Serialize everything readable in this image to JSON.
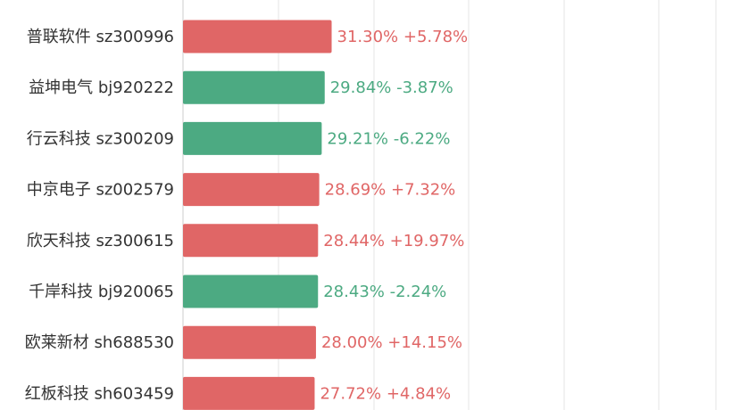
{
  "chart_data": {
    "type": "bar",
    "orientation": "horizontal",
    "grid": true,
    "colors": {
      "up": "#e06666",
      "down": "#4caa82",
      "grid": "#e6e6e6",
      "axis": "#cccccc",
      "label": "#333333"
    },
    "rows": [
      {
        "name": "普联软件",
        "code": "sz300996",
        "value": 31.3,
        "value_label": "31.30%",
        "change": "+5.78%",
        "dir": "up"
      },
      {
        "name": "益坤电气",
        "code": "bj920222",
        "value": 29.84,
        "value_label": "29.84%",
        "change": "-3.87%",
        "dir": "down"
      },
      {
        "name": "行云科技",
        "code": "sz300209",
        "value": 29.21,
        "value_label": "29.21%",
        "change": "-6.22%",
        "dir": "down"
      },
      {
        "name": "中京电子",
        "code": "sz002579",
        "value": 28.69,
        "value_label": "28.69%",
        "change": "+7.32%",
        "dir": "up"
      },
      {
        "name": "欣天科技",
        "code": "sz300615",
        "value": 28.44,
        "value_label": "28.44%",
        "change": "+19.97%",
        "dir": "up"
      },
      {
        "name": "千岸科技",
        "code": "bj920065",
        "value": 28.43,
        "value_label": "28.43%",
        "change": "-2.24%",
        "dir": "down"
      },
      {
        "name": "欧莱新材",
        "code": "sh688530",
        "value": 28.0,
        "value_label": "28.00%",
        "change": "+14.15%",
        "dir": "up"
      },
      {
        "name": "红板科技",
        "code": "sh603459",
        "value": 27.72,
        "value_label": "27.72%",
        "change": "+4.84%",
        "dir": "up"
      }
    ]
  }
}
